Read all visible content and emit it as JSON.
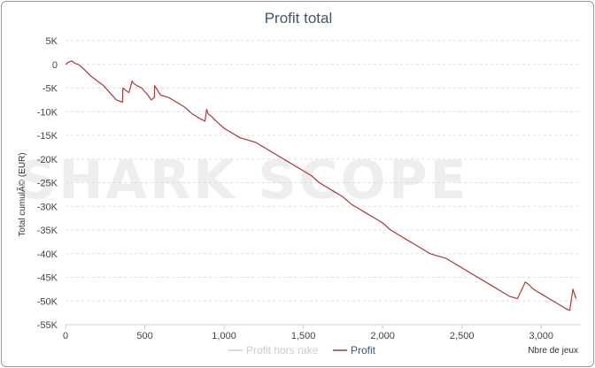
{
  "chart_data": {
    "type": "line",
    "title": "Profit total",
    "xlabel": "Nbre de jeux",
    "ylabel": "Total cumulé (EUR)",
    "ylabel_display": "Total cumulÃ© (EUR)",
    "xlim": [
      0,
      3250
    ],
    "ylim": [
      -55000,
      5000
    ],
    "x_ticks": [
      0,
      500,
      1000,
      1500,
      2000,
      2500,
      3000
    ],
    "x_tick_labels": [
      "0",
      "500",
      "1,000",
      "1,500",
      "2,000",
      "2,500",
      "3,000"
    ],
    "y_ticks": [
      5000,
      0,
      -5000,
      -10000,
      -15000,
      -20000,
      -25000,
      -30000,
      -35000,
      -40000,
      -45000,
      -50000,
      -55000
    ],
    "y_tick_labels": [
      "5K",
      "0",
      "-5K",
      "-10K",
      "-15K",
      "-20K",
      "-25K",
      "-30K",
      "-35K",
      "-40K",
      "-45K",
      "-50K",
      "-55K"
    ],
    "grid": true,
    "legend_position": "bottom",
    "watermark": "SHARK SCOPE",
    "series": [
      {
        "name": "Profit hors rake",
        "color": "#cccccc",
        "visible": false,
        "x": [],
        "y": []
      },
      {
        "name": "Profit",
        "color": "#a93a3a",
        "visible": true,
        "x": [
          0,
          20,
          40,
          60,
          80,
          100,
          130,
          160,
          200,
          240,
          280,
          320,
          360,
          362,
          380,
          400,
          420,
          430,
          450,
          480,
          520,
          540,
          560,
          562,
          600,
          650,
          700,
          750,
          800,
          850,
          880,
          890,
          900,
          920,
          950,
          1000,
          1050,
          1100,
          1150,
          1200,
          1250,
          1300,
          1350,
          1400,
          1450,
          1500,
          1550,
          1600,
          1650,
          1700,
          1750,
          1800,
          1850,
          1900,
          1950,
          2000,
          2050,
          2100,
          2150,
          2200,
          2250,
          2300,
          2350,
          2400,
          2450,
          2500,
          2550,
          2600,
          2650,
          2700,
          2750,
          2800,
          2850,
          2900,
          2920,
          2950,
          3000,
          3050,
          3100,
          3150,
          3180,
          3200,
          3220
        ],
        "y": [
          0,
          500,
          700,
          200,
          0,
          -500,
          -1500,
          -2500,
          -3500,
          -4500,
          -6000,
          -7500,
          -8000,
          -5000,
          -5500,
          -6000,
          -3500,
          -4000,
          -4500,
          -5000,
          -6500,
          -7500,
          -7000,
          -4500,
          -6500,
          -7000,
          -8000,
          -9000,
          -10500,
          -11500,
          -12000,
          -9500,
          -10500,
          -11000,
          -12000,
          -13500,
          -14500,
          -15500,
          -16000,
          -16500,
          -17500,
          -18500,
          -19500,
          -20500,
          -21500,
          -22500,
          -23500,
          -25000,
          -26000,
          -27000,
          -28000,
          -29500,
          -30500,
          -31500,
          -32500,
          -33500,
          -35000,
          -36000,
          -37000,
          -38000,
          -39000,
          -40000,
          -40500,
          -41000,
          -42000,
          -43000,
          -44000,
          -45000,
          -46000,
          -47000,
          -48000,
          -49000,
          -49500,
          -46000,
          -46500,
          -47500,
          -48500,
          -49500,
          -50500,
          -51500,
          -52000,
          -47500,
          -49500
        ]
      }
    ]
  }
}
